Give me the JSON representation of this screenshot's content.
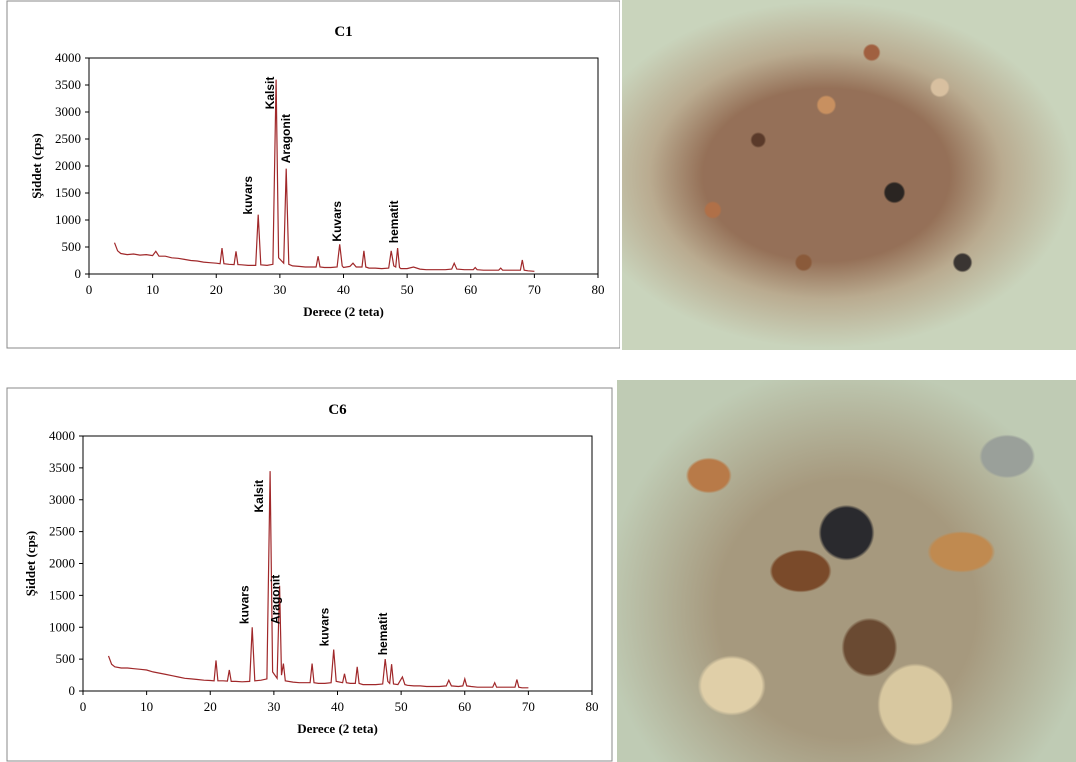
{
  "chart_data": [
    {
      "type": "line",
      "title": "C1",
      "xlabel": "Derece (2 teta)",
      "ylabel": "Şiddet (cps)",
      "color": "#a0282a",
      "xlim": [
        0,
        80
      ],
      "xticks": [
        0,
        10,
        20,
        30,
        40,
        50,
        60,
        70,
        80
      ],
      "ylim": [
        0,
        4000
      ],
      "yticks": [
        0,
        500,
        1000,
        1500,
        2000,
        2500,
        3000,
        3500,
        4000
      ],
      "x": [
        4,
        4.5,
        5,
        6,
        7,
        8,
        9,
        10,
        10.5,
        11,
        12,
        13,
        14,
        15,
        16,
        17,
        18,
        19,
        20,
        20.6,
        20.9,
        21.2,
        22,
        22.8,
        23.1,
        23.4,
        24,
        25,
        26.2,
        26.6,
        27,
        28,
        28.9,
        29.4,
        29.8,
        30.6,
        31.0,
        31.4,
        32,
        33,
        34,
        35,
        35.7,
        36.0,
        36.3,
        37,
        38,
        39.0,
        39.4,
        39.8,
        40,
        41,
        41.5,
        42,
        42.9,
        43.2,
        43.5,
        44,
        45,
        46,
        47.1,
        47.5,
        47.9,
        48.2,
        48.5,
        48.8,
        49,
        50,
        51,
        52,
        53,
        54,
        55,
        56,
        57.0,
        57.4,
        57.8,
        59,
        60.4,
        60.7,
        61,
        62,
        63,
        64.4,
        64.7,
        65,
        66,
        67,
        67.8,
        68.1,
        68.4,
        69,
        70
      ],
      "values": [
        580,
        430,
        380,
        360,
        370,
        350,
        360,
        340,
        420,
        330,
        330,
        300,
        290,
        270,
        250,
        240,
        220,
        210,
        200,
        190,
        480,
        190,
        180,
        175,
        420,
        175,
        170,
        160,
        160,
        1100,
        170,
        160,
        180,
        3600,
        300,
        200,
        1950,
        180,
        150,
        140,
        130,
        130,
        130,
        330,
        130,
        120,
        120,
        130,
        550,
        150,
        120,
        140,
        200,
        130,
        130,
        430,
        130,
        110,
        110,
        100,
        110,
        430,
        150,
        130,
        480,
        120,
        100,
        100,
        130,
        90,
        80,
        80,
        80,
        80,
        90,
        200,
        90,
        80,
        80,
        120,
        80,
        70,
        70,
        70,
        110,
        70,
        70,
        70,
        70,
        260,
        70,
        60,
        50
      ],
      "annotations": [
        {
          "text": "kuvars",
          "x": 25.6,
          "y": 1100
        },
        {
          "text": "Kalsit",
          "x": 29.1,
          "y": 3050
        },
        {
          "text": "Aragonit",
          "x": 31.6,
          "y": 2050
        },
        {
          "text": "Kuvars",
          "x": 39.6,
          "y": 600
        },
        {
          "text": "hematit",
          "x": 48.6,
          "y": 570
        }
      ]
    },
    {
      "type": "line",
      "title": "C6",
      "xlabel": "Derece (2 teta)",
      "ylabel": "Şiddet (cps)",
      "color": "#a0282a",
      "xlim": [
        0,
        80
      ],
      "xticks": [
        0,
        10,
        20,
        30,
        40,
        50,
        60,
        70,
        80
      ],
      "ylim": [
        0,
        4000
      ],
      "yticks": [
        0,
        500,
        1000,
        1500,
        2000,
        2500,
        3000,
        3500,
        4000
      ],
      "x": [
        4,
        4.5,
        5,
        6,
        7,
        8,
        9,
        10,
        11,
        12,
        13,
        14,
        15,
        16,
        17,
        18,
        19,
        20,
        20.6,
        20.9,
        21.2,
        22,
        22.7,
        23.0,
        23.3,
        24,
        25,
        26.2,
        26.6,
        27,
        28,
        28.9,
        29.4,
        29.8,
        30.5,
        30.9,
        31.2,
        31.5,
        31.8,
        33,
        34,
        35,
        35.7,
        36.0,
        36.3,
        37,
        38,
        39.0,
        39.4,
        39.8,
        40.8,
        41.1,
        41.4,
        42,
        42.8,
        43.1,
        43.4,
        44,
        45,
        46,
        47.1,
        47.5,
        47.9,
        48.2,
        48.5,
        48.8,
        49.5,
        50.2,
        50.6,
        51,
        52,
        53,
        54,
        55,
        56,
        57.1,
        57.5,
        57.9,
        59,
        59.7,
        60.0,
        60.3,
        61,
        62,
        63,
        64.4,
        64.7,
        65,
        66,
        67,
        67.9,
        68.2,
        68.5,
        69,
        70
      ],
      "values": [
        550,
        420,
        380,
        360,
        360,
        350,
        340,
        330,
        300,
        280,
        260,
        240,
        220,
        200,
        190,
        180,
        170,
        165,
        160,
        480,
        160,
        160,
        155,
        330,
        150,
        150,
        145,
        150,
        1000,
        160,
        170,
        190,
        3450,
        300,
        200,
        1650,
        250,
        430,
        160,
        140,
        130,
        130,
        130,
        430,
        130,
        120,
        120,
        130,
        650,
        150,
        130,
        270,
        130,
        120,
        120,
        380,
        120,
        100,
        100,
        100,
        110,
        500,
        150,
        120,
        420,
        110,
        100,
        220,
        100,
        90,
        80,
        80,
        70,
        70,
        70,
        80,
        170,
        80,
        70,
        80,
        190,
        80,
        70,
        60,
        60,
        60,
        130,
        60,
        60,
        60,
        60,
        180,
        60,
        50,
        50
      ],
      "annotations": [
        {
          "text": "kuvars",
          "x": 26.0,
          "y": 1050
        },
        {
          "text": "Kalsit",
          "x": 28.3,
          "y": 2800
        },
        {
          "text": "Aragonit",
          "x": 30.9,
          "y": 1050
        },
        {
          "text": "kuvars",
          "x": 38.6,
          "y": 700
        },
        {
          "text": "hematit",
          "x": 47.8,
          "y": 560
        }
      ]
    }
  ]
}
